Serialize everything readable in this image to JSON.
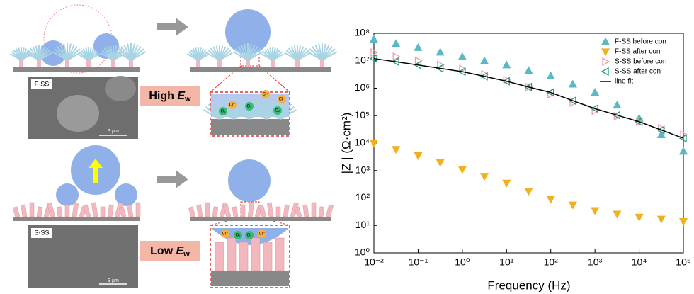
{
  "schematic": {
    "top_sample": "F-SS",
    "top_scale": "3 μm",
    "top_label": {
      "prefix": "High",
      "symbol": "E",
      "subscript": "w"
    },
    "top_ions": [
      "O₂",
      "Cl⁻",
      "O₂",
      "Cl⁻",
      "O₂",
      "Cl⁻"
    ],
    "bottom_sample": "S-SS",
    "bottom_scale": "3 μm",
    "bottom_label": {
      "prefix": "Low",
      "symbol": "E",
      "subscript": "w"
    },
    "bottom_ions": [
      "Cl⁻",
      "O₂",
      "O₂",
      "Cl⁻"
    ]
  },
  "chart_data": {
    "type": "scatter",
    "x_label": "Frequency (Hz)",
    "y_label": "|Z | (Ω·cm²)",
    "x_scale": "log",
    "y_scale": "log",
    "legend": "upper right",
    "x": [
      0.01,
      0.0316,
      0.1,
      0.316,
      1,
      3.16,
      10,
      31.6,
      100,
      316,
      1000,
      3162,
      10000,
      31623,
      100000
    ],
    "series": [
      {
        "name": "F-SS before con",
        "color": "#5bb8c6",
        "marker": "triangle-up",
        "values": [
          60000000,
          42000000,
          30000000,
          20500000,
          14000000,
          9900000,
          7000000,
          4400000,
          2800000,
          1400000,
          700000,
          240000,
          80000,
          20000,
          5000
        ]
      },
      {
        "name": "F-SS after con",
        "color": "#f2b01e",
        "marker": "triangle-down",
        "values": [
          10000,
          5900,
          3500,
          1960,
          1100,
          620,
          350,
          177,
          90,
          56,
          35,
          26,
          20,
          17,
          14
        ]
      },
      {
        "name": "S-SS before con",
        "color": "#f0a0a8",
        "marker": "triangle-right",
        "values": [
          20000000,
          14100000,
          10000000,
          7100000,
          5000000,
          3200000,
          2000000,
          1100000,
          600000,
          300000,
          150000,
          95000,
          60000,
          35000,
          20000
        ]
      },
      {
        "name": "S-SS after con",
        "color": "#1e9c7c",
        "marker": "triangle-left",
        "values": [
          12000000,
          9200000,
          7000000,
          5300000,
          4000000,
          2700000,
          1800000,
          1100000,
          700000,
          350000,
          180000,
          104000,
          60000,
          30000,
          15000
        ]
      },
      {
        "name": "line fit",
        "color": "#000000",
        "marker": "line",
        "values": [
          12000000,
          9200000,
          7000000,
          5300000,
          4000000,
          2700000,
          1800000,
          1100000,
          700000,
          350000,
          180000,
          104000,
          60000,
          30000,
          15000
        ]
      }
    ],
    "xlim": [
      0.01,
      100000
    ],
    "ylim": [
      1,
      100000000
    ],
    "xticks": [
      {
        "value": 0.01,
        "label": "10⁻²"
      },
      {
        "value": 0.1,
        "label": "10⁻¹"
      },
      {
        "value": 1,
        "label": "10⁰"
      },
      {
        "value": 10,
        "label": "10¹"
      },
      {
        "value": 100,
        "label": "10²"
      },
      {
        "value": 1000,
        "label": "10³"
      },
      {
        "value": 10000,
        "label": "10⁴"
      },
      {
        "value": 100000,
        "label": "10⁵"
      }
    ],
    "yticks": [
      {
        "value": 1,
        "label": "10⁰"
      },
      {
        "value": 10,
        "label": "10¹"
      },
      {
        "value": 100,
        "label": "10²"
      },
      {
        "value": 1000,
        "label": "10³"
      },
      {
        "value": 10000,
        "label": "10⁴"
      },
      {
        "value": 100000,
        "label": "10⁵"
      },
      {
        "value": 1000000,
        "label": "10⁶"
      },
      {
        "value": 10000000,
        "label": "10⁷"
      },
      {
        "value": 100000000,
        "label": "10⁸"
      }
    ]
  }
}
